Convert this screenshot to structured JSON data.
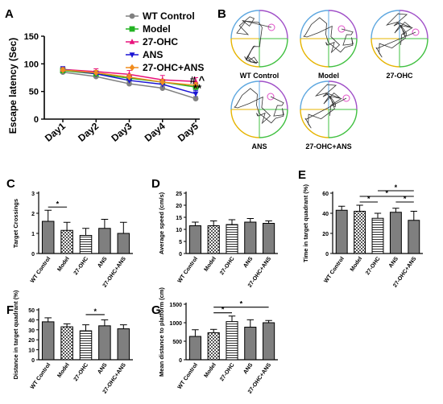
{
  "panel_letters": {
    "a": "A",
    "b": "B",
    "c": "C",
    "d": "D",
    "e": "E",
    "f": "F",
    "g": "G"
  },
  "colors": {
    "wt": "#808080",
    "model": "#22b322",
    "ohc": "#e8127c",
    "ans": "#1a14d4",
    "combo": "#f08c1e",
    "bar_fill": "#7f7f7f"
  },
  "trace_labels": [
    "WT Control",
    "Model",
    "27-OHC",
    "ANS",
    "27-OHC+ANS"
  ],
  "chart_data": [
    {
      "id": "A",
      "type": "line",
      "ylabel": "Escape latency (Sec)",
      "xlabel": "",
      "categories": [
        "Day1",
        "Day2",
        "Day3",
        "Day4",
        "Day5"
      ],
      "ylim": [
        0,
        150
      ],
      "yticks": [
        0,
        50,
        100,
        150
      ],
      "series": [
        {
          "name": "WT Control",
          "color": "#808080",
          "marker": "circle",
          "values": [
            85,
            77,
            64,
            56,
            37
          ],
          "err": [
            3,
            3,
            4,
            4,
            4
          ]
        },
        {
          "name": "Model",
          "color": "#22b322",
          "marker": "square",
          "values": [
            88,
            82,
            74,
            67,
            58
          ],
          "err": [
            4,
            4,
            5,
            5,
            6
          ]
        },
        {
          "name": "27-OHC",
          "color": "#e8127c",
          "marker": "triangle",
          "values": [
            90,
            86,
            81,
            71,
            68
          ],
          "err": [
            4,
            5,
            7,
            8,
            7
          ]
        },
        {
          "name": "ANS",
          "color": "#1a14d4",
          "marker": "triangle-down",
          "values": [
            90,
            82,
            70,
            63,
            46
          ],
          "err": [
            5,
            5,
            5,
            5,
            6
          ]
        },
        {
          "name": "27-OHC+ANS",
          "color": "#f08c1e",
          "marker": "diamond",
          "values": [
            89,
            84,
            76,
            67,
            61
          ],
          "err": [
            4,
            4,
            5,
            5,
            5
          ]
        }
      ],
      "annotations": [
        "# ^",
        "**"
      ]
    },
    {
      "id": "C",
      "type": "bar",
      "ylabel": "Target Crossings",
      "categories": [
        "WT Control",
        "Model",
        "27-OHC",
        "ANS",
        "27-OHC+ANS"
      ],
      "values": [
        1.6,
        1.15,
        0.9,
        1.25,
        1.0
      ],
      "err": [
        0.55,
        0.4,
        0.35,
        0.45,
        0.55
      ],
      "ylim": [
        0,
        3
      ],
      "yticks": [
        0,
        1,
        2,
        3
      ],
      "patterns": [
        "solid",
        "check",
        "hstripe",
        "solid",
        "solid"
      ],
      "sig": [
        {
          "from": 0,
          "to": 1,
          "level": 1,
          "label": "*"
        }
      ]
    },
    {
      "id": "D",
      "type": "bar",
      "ylabel": "Average speed (cm/s)",
      "categories": [
        "WT Control",
        "Model",
        "27-OHC",
        "ANS",
        "27-OHC+ANS"
      ],
      "values": [
        11.5,
        11.5,
        12,
        13,
        12.5
      ],
      "err": [
        1.5,
        2,
        2,
        1.5,
        1
      ],
      "ylim": [
        0,
        25
      ],
      "yticks": [
        0,
        5,
        10,
        15,
        20,
        25
      ],
      "patterns": [
        "solid",
        "check",
        "hstripe",
        "solid",
        "solid"
      ],
      "sig": []
    },
    {
      "id": "E",
      "type": "bar",
      "ylabel": "Time in target quadrant (%)",
      "categories": [
        "WT Control",
        "Model",
        "27-OHC",
        "ANS",
        "27-OHC+ANS"
      ],
      "values": [
        43,
        42,
        35,
        41,
        33
      ],
      "err": [
        4,
        6,
        5,
        4,
        9
      ],
      "ylim": [
        0,
        60
      ],
      "yticks": [
        0,
        20,
        40,
        60
      ],
      "patterns": [
        "solid",
        "check",
        "hstripe",
        "solid",
        "solid"
      ],
      "sig": [
        {
          "from": 1,
          "to": 2,
          "level": 1,
          "label": "*"
        },
        {
          "from": 3,
          "to": 4,
          "level": 1,
          "label": "*"
        },
        {
          "from": 1,
          "to": 4,
          "level": 2,
          "label": "*"
        },
        {
          "from": 2,
          "to": 4,
          "level": 3,
          "label": "*"
        }
      ]
    },
    {
      "id": "F",
      "type": "bar",
      "ylabel": "Distance in target quadrant (%)",
      "categories": [
        "WT Control",
        "Model",
        "27-OHC",
        "ANS",
        "27-OHC+ANS"
      ],
      "values": [
        38,
        33,
        29,
        34,
        31
      ],
      "err": [
        4,
        3,
        6,
        6,
        4
      ],
      "ylim": [
        0,
        50
      ],
      "yticks": [
        0,
        10,
        20,
        30,
        40,
        50
      ],
      "patterns": [
        "solid",
        "check",
        "hstripe",
        "solid",
        "solid"
      ],
      "sig": [
        {
          "from": 2,
          "to": 3,
          "level": 1,
          "label": "*"
        }
      ]
    },
    {
      "id": "G",
      "type": "bar",
      "ylabel": "Mean distance to platform (cm)",
      "categories": [
        "WT Control",
        "Model",
        "27-OHC",
        "ANS",
        "27-OHC+ANS"
      ],
      "values": [
        630,
        730,
        1030,
        880,
        1000
      ],
      "err": [
        180,
        90,
        150,
        200,
        60
      ],
      "ylim": [
        0,
        1500
      ],
      "yticks": [
        0,
        500,
        1000,
        1500
      ],
      "patterns": [
        "solid",
        "check",
        "hstripe",
        "solid",
        "solid"
      ],
      "sig": [
        {
          "from": 1,
          "to": 2,
          "level": 1,
          "label": "*"
        },
        {
          "from": 1,
          "to": 4,
          "level": 2,
          "label": "*"
        }
      ]
    }
  ]
}
